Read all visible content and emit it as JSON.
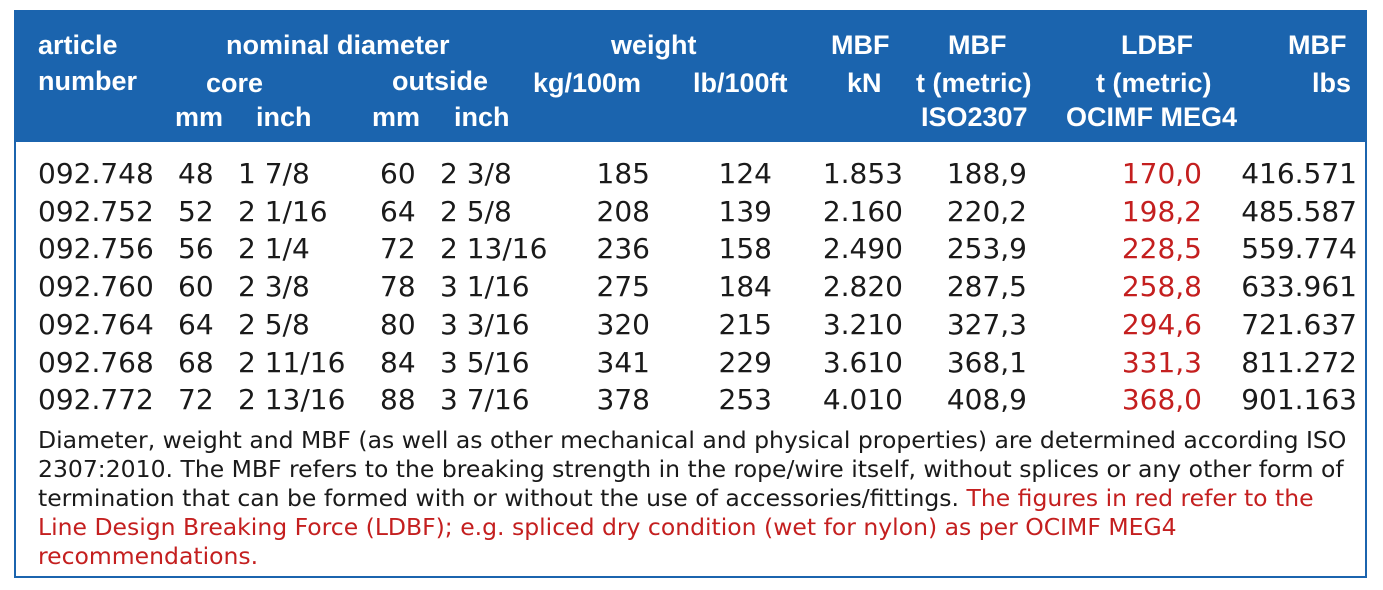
{
  "header": {
    "article_line1": "article",
    "article_line2": "number",
    "nominal_diameter": "nominal diameter",
    "core": "core",
    "outside": "outside",
    "core_mm": "mm",
    "core_inch": "inch",
    "outside_mm": "mm",
    "outside_inch": "inch",
    "weight": "weight",
    "weight_kg": "kg/100m",
    "weight_lb": "lb/100ft",
    "mbf_kn_line1": "MBF",
    "mbf_kn_line2": "kN",
    "mbf_t_line1": "MBF",
    "mbf_t_line2": "t (metric)",
    "mbf_t_line3": "ISO2307",
    "ldbf_line1": "LDBF",
    "ldbf_line2": "t (metric)",
    "ldbf_line3": "OCIMF MEG4",
    "mbf_lbs_line1": "MBF",
    "mbf_lbs_line2": "lbs"
  },
  "rows": [
    {
      "article": "092.748",
      "core_mm": "48",
      "core_inch": "1 7/8",
      "out_mm": "60",
      "out_inch": "2 3/8",
      "kg": "185",
      "lb": "124",
      "kn": "1.853",
      "t": "188,9",
      "ldbf": "170,0",
      "lbs": "416.571"
    },
    {
      "article": "092.752",
      "core_mm": "52",
      "core_inch": "2 1/16",
      "out_mm": "64",
      "out_inch": "2 5/8",
      "kg": "208",
      "lb": "139",
      "kn": "2.160",
      "t": "220,2",
      "ldbf": "198,2",
      "lbs": "485.587"
    },
    {
      "article": "092.756",
      "core_mm": "56",
      "core_inch": "2 1/4",
      "out_mm": "72",
      "out_inch": "2 13/16",
      "kg": "236",
      "lb": "158",
      "kn": "2.490",
      "t": "253,9",
      "ldbf": "228,5",
      "lbs": "559.774"
    },
    {
      "article": "092.760",
      "core_mm": "60",
      "core_inch": "2 3/8",
      "out_mm": "78",
      "out_inch": "3 1/16",
      "kg": "275",
      "lb": "184",
      "kn": "2.820",
      "t": "287,5",
      "ldbf": "258,8",
      "lbs": "633.961"
    },
    {
      "article": "092.764",
      "core_mm": "64",
      "core_inch": "2 5/8",
      "out_mm": "80",
      "out_inch": "3 3/16",
      "kg": "320",
      "lb": "215",
      "kn": "3.210",
      "t": "327,3",
      "ldbf": "294,6",
      "lbs": "721.637"
    },
    {
      "article": "092.768",
      "core_mm": "68",
      "core_inch": "2 11/16",
      "out_mm": "84",
      "out_inch": "3 5/16",
      "kg": "341",
      "lb": "229",
      "kn": "3.610",
      "t": "368,1",
      "ldbf": "331,3",
      "lbs": "811.272"
    },
    {
      "article": "092.772",
      "core_mm": "72",
      "core_inch": "2 13/16",
      "out_mm": "88",
      "out_inch": "3 7/16",
      "kg": "378",
      "lb": "253",
      "kn": "4.010",
      "t": "408,9",
      "ldbf": "368,0",
      "lbs": "901.163"
    }
  ],
  "note": {
    "black": "Diameter, weight and MBF (as well as other mechanical and physical properties) are determined according ISO 2307:2010. The MBF refers to the breaking strength in the rope/wire itself, without splices or any other form of termination that can be formed with or without the use of accessories/fittings. ",
    "red": "The figures in red refer to the Line Design Breaking Force (LDBF); e.g. spliced dry condition (wet for nylon) as per OCIMF MEG4 recommendations."
  },
  "colors": {
    "header_bg": "#1b64ae",
    "header_text": "#ffffff",
    "highlight_red": "#c41f1f",
    "body_text": "#1a1a1a"
  }
}
